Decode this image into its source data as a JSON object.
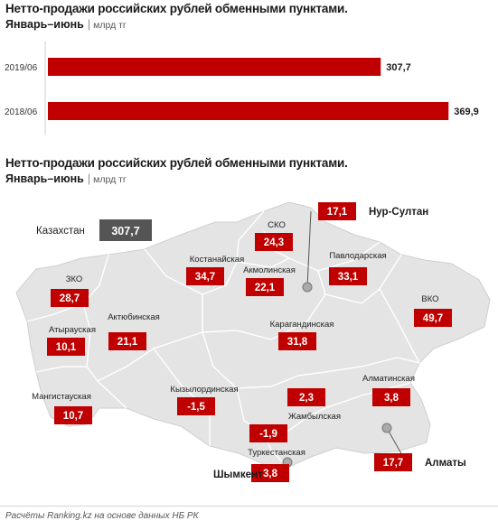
{
  "bar_chart": {
    "title": "Нетто-продажи российских рублей обменными пунктами.",
    "subtitle": "Январь–июнь",
    "unit": "млрд тг"
  },
  "map": {
    "title": "Нетто-продажи российских рублей обменными пунктами.",
    "subtitle": "Январь–июнь",
    "unit": "млрд тг",
    "total": {
      "label": "Казахстан",
      "value": "307,7"
    },
    "regions": [
      {
        "name": "СКО",
        "value": "24,3"
      },
      {
        "name": "Нур-Султан",
        "value": "17,1"
      },
      {
        "name": "Костанайская",
        "value": "34,7"
      },
      {
        "name": "Акмолинская",
        "value": "22,1"
      },
      {
        "name": "Павлодарская",
        "value": "33,1"
      },
      {
        "name": "ЗКО",
        "value": "28,7"
      },
      {
        "name": "ВКО",
        "value": "49,7"
      },
      {
        "name": "Атырауская",
        "value": "10,1"
      },
      {
        "name": "Актюбинская",
        "value": "21,1"
      },
      {
        "name": "Карагандинская",
        "value": "31,8"
      },
      {
        "name": "Кызылординская",
        "value": "-1,5"
      },
      {
        "name": "Мангистауская",
        "value": "10,7"
      },
      {
        "name": "Алматинская",
        "value": "3,8"
      },
      {
        "name": "Жамбылская",
        "value": "2,3"
      },
      {
        "name": "Туркестанская",
        "value": "-1,9"
      },
      {
        "name": "Шымкент",
        "value": "3,8"
      },
      {
        "name": "Алматы",
        "value": "17,7"
      }
    ]
  },
  "chart_data": {
    "type": "bar",
    "orientation": "horizontal",
    "title": "Нетто-продажи российских рублей обменными пунктами.",
    "subtitle": "Январь–июнь",
    "ylabel": "млрд тг",
    "categories": [
      "2019/06",
      "2018/06"
    ],
    "values": [
      307.7,
      369.9
    ],
    "value_labels": [
      "307,7",
      "369,9"
    ],
    "xlim": [
      0,
      373
    ],
    "grid": false,
    "colors": {
      "bar": "#c00000",
      "map_fill": "#e4e4e4",
      "map_border": "#ffffff",
      "total_box": "#555555",
      "label_box": "#c00000"
    }
  },
  "footer": {
    "source": "Расчёты Ranking.kz на основе данных НБ РК"
  }
}
